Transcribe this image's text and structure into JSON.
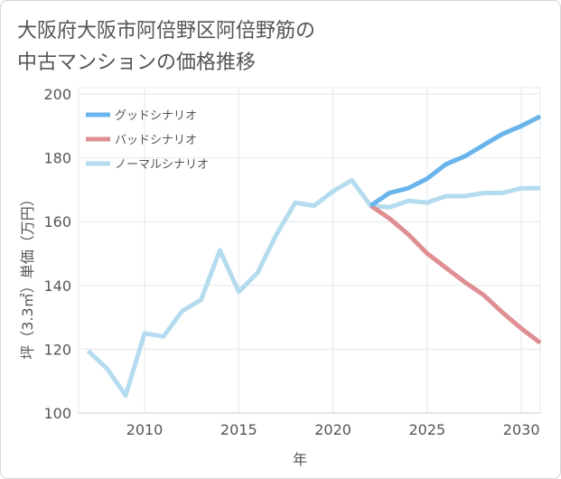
{
  "chart_data": {
    "type": "line",
    "title_lines": [
      "大阪府大阪市阿倍野区阿倍野筋の",
      "中古マンションの価格推移"
    ],
    "xlabel": "年",
    "ylabel": "坪（3.3㎡）単価（万円）",
    "xlim": [
      2006.5,
      2031
    ],
    "ylim": [
      100,
      202
    ],
    "x_ticks": [
      2010,
      2015,
      2020,
      2025,
      2030
    ],
    "y_ticks": [
      100,
      120,
      140,
      160,
      180,
      200
    ],
    "grid": true,
    "legend_position": "top-left",
    "series": [
      {
        "name": "グッドシナリオ",
        "color": "#6ab4ec",
        "points": [
          [
            2022,
            165
          ],
          [
            2023,
            169
          ],
          [
            2024,
            170.5
          ],
          [
            2025,
            173.5
          ],
          [
            2026,
            178
          ],
          [
            2027,
            180.5
          ],
          [
            2028,
            184
          ],
          [
            2029,
            187.5
          ],
          [
            2030,
            190
          ],
          [
            2031,
            193
          ]
        ]
      },
      {
        "name": "バッドシナリオ",
        "color": "#df8f93",
        "points": [
          [
            2022,
            165
          ],
          [
            2023,
            161
          ],
          [
            2024,
            156
          ],
          [
            2025,
            150
          ],
          [
            2026,
            145.5
          ],
          [
            2027,
            141
          ],
          [
            2028,
            137
          ],
          [
            2029,
            131.5
          ],
          [
            2030,
            126.5
          ],
          [
            2031,
            122
          ]
        ]
      },
      {
        "name": "ノーマルシナリオ",
        "color": "#b5dcee",
        "points": [
          [
            2007,
            119.5
          ],
          [
            2008,
            114
          ],
          [
            2009,
            105.5
          ],
          [
            2010,
            125
          ],
          [
            2011,
            124
          ],
          [
            2012,
            132
          ],
          [
            2013,
            135.5
          ],
          [
            2014,
            151
          ],
          [
            2015,
            138
          ],
          [
            2016,
            144
          ],
          [
            2017,
            156
          ],
          [
            2018,
            166
          ],
          [
            2019,
            165
          ],
          [
            2020,
            169.5
          ],
          [
            2021,
            173
          ],
          [
            2022,
            165
          ],
          [
            2023,
            164.5
          ],
          [
            2024,
            166.5
          ],
          [
            2025,
            166
          ],
          [
            2026,
            168
          ],
          [
            2027,
            168
          ],
          [
            2028,
            169
          ],
          [
            2029,
            169
          ],
          [
            2030,
            170.5
          ],
          [
            2031,
            170.5
          ]
        ]
      }
    ]
  }
}
